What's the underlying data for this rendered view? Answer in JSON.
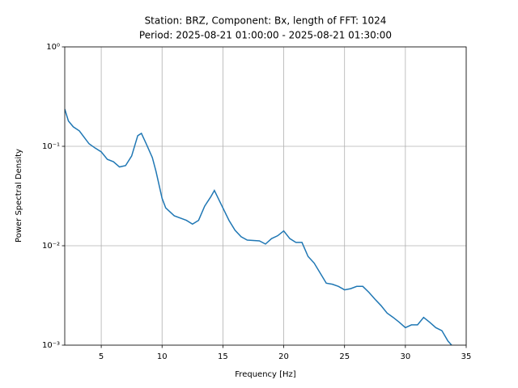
{
  "chart_data": {
    "type": "line",
    "title": "Station: BRZ, Component: Bx, length of FFT: 1024",
    "subtitle": "Period: 2025-08-21 01:00:00 - 2025-08-21 01:30:00",
    "x_label": "Frequency [Hz]",
    "y_label": "Power Spectral Density",
    "x": [
      2,
      2.3,
      2.7,
      3.2,
      3.6,
      4,
      4.5,
      5,
      5.5,
      6,
      6.5,
      7,
      7.5,
      8,
      8.3,
      8.7,
      9.2,
      9.5,
      10,
      10.3,
      11,
      12,
      12.5,
      13,
      13.5,
      14,
      14.3,
      15,
      15.5,
      16,
      16.5,
      17,
      18,
      18.5,
      19,
      19.5,
      20,
      20.5,
      21,
      21.5,
      22,
      22.5,
      23,
      23.5,
      24,
      24.5,
      25,
      25.5,
      26,
      26.5,
      27,
      27.5,
      28,
      28.5,
      29,
      29.5,
      30,
      30.5,
      31,
      31.5,
      32,
      32.5,
      33,
      33.5,
      33.8
    ],
    "values": [
      0.237,
      0.18,
      0.157,
      0.143,
      0.123,
      0.106,
      0.096,
      0.088,
      0.074,
      0.07,
      0.062,
      0.064,
      0.08,
      0.128,
      0.135,
      0.106,
      0.077,
      0.056,
      0.03,
      0.024,
      0.02,
      0.018,
      0.0165,
      0.018,
      0.025,
      0.031,
      0.036,
      0.024,
      0.018,
      0.0143,
      0.0123,
      0.0114,
      0.0112,
      0.0104,
      0.0118,
      0.0126,
      0.0141,
      0.0118,
      0.0108,
      0.0108,
      0.0078,
      0.0067,
      0.0053,
      0.0042,
      0.0041,
      0.0039,
      0.0036,
      0.0037,
      0.0039,
      0.0039,
      0.0034,
      0.0029,
      0.0025,
      0.0021,
      0.0019,
      0.0017,
      0.0015,
      0.0016,
      0.0016,
      0.0019,
      0.0017,
      0.0015,
      0.0014,
      0.0011,
      0.001
    ],
    "color": "#1f77b4",
    "xlim": [
      2,
      35
    ],
    "xticks": [
      5,
      10,
      15,
      20,
      25,
      30,
      35
    ],
    "ylim": [
      0.001,
      1
    ],
    "log_y": true,
    "yticks": [
      {
        "value": 0.001,
        "label": "10⁻³"
      },
      {
        "value": 0.01,
        "label": "10⁻²"
      },
      {
        "value": 0.1,
        "label": "10⁻¹"
      },
      {
        "value": 1,
        "label": "10⁰"
      }
    ],
    "grid": true
  }
}
